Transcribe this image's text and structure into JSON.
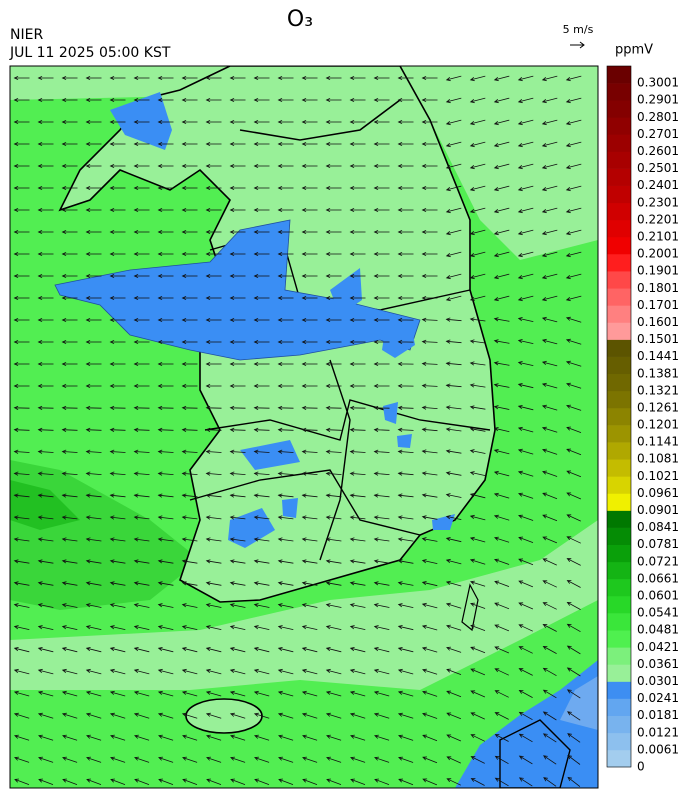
{
  "header": {
    "title": "O₃",
    "agency": "NIER",
    "timestamp": "JUL 11 2025 05:00 KST"
  },
  "wind_reference": {
    "label": "5 m/s"
  },
  "colorbar": {
    "unit": "ppmV",
    "labels": [
      "0",
      "0.0061",
      "0.0121",
      "0.0181",
      "0.0241",
      "0.0301",
      "0.0361",
      "0.0421",
      "0.0481",
      "0.0541",
      "0.0601",
      "0.0661",
      "0.0721",
      "0.0781",
      "0.0841",
      "0.0901",
      "0.0961",
      "0.1021",
      "0.1081",
      "0.1141",
      "0.1201",
      "0.1261",
      "0.1321",
      "0.1381",
      "0.1441",
      "0.1501",
      "0.1601",
      "0.1701",
      "0.1801",
      "0.1901",
      "0.2001",
      "0.2101",
      "0.2201",
      "0.2301",
      "0.2401",
      "0.2501",
      "0.2601",
      "0.2701",
      "0.2801",
      "0.2901",
      "0.3001"
    ],
    "colors": [
      "#a3cdee",
      "#8dc0ee",
      "#78b3ee",
      "#62a6f0",
      "#3d8ef2",
      "#98f098",
      "#7cf07c",
      "#4ff04f",
      "#3ae63a",
      "#28d828",
      "#1ec81e",
      "#14b414",
      "#0aa00a",
      "#058c05",
      "#007800",
      "#f0f000",
      "#d8d400",
      "#c4bc00",
      "#b0a800",
      "#9c9400",
      "#8c8400",
      "#7c7400",
      "#706800",
      "#665e00",
      "#5c5400",
      "#ff9a9a",
      "#ff8080",
      "#ff6464",
      "#ff4848",
      "#ff1e1e",
      "#f00000",
      "#e00000",
      "#d00000",
      "#c00000",
      "#b40000",
      "#a80000",
      "#9c0000",
      "#900000",
      "#840000",
      "#780000",
      "#6a0000"
    ]
  }
}
